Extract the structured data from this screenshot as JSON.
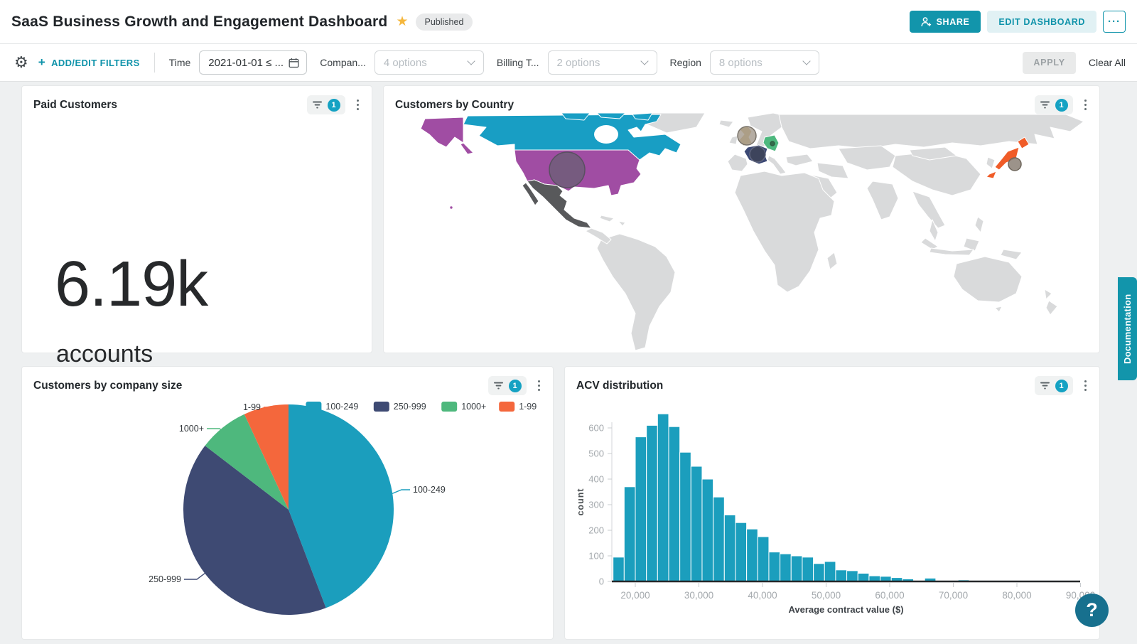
{
  "header": {
    "title": "SaaS Business Growth and Engagement Dashboard",
    "status": "Published",
    "share_label": "SHARE",
    "edit_label": "EDIT DASHBOARD",
    "more_label": "···"
  },
  "filter_bar": {
    "add_edit_label": "ADD/EDIT FILTERS",
    "plus": "+",
    "filters": [
      {
        "label": "Time",
        "value": "2021-01-01 ≤ ..."
      },
      {
        "label": "Compan...",
        "value": "4 options"
      },
      {
        "label": "Billing T...",
        "value": "2 options"
      },
      {
        "label": "Region",
        "value": "8 options"
      }
    ],
    "apply_label": "APPLY",
    "clear_all_label": "Clear All"
  },
  "tiles": {
    "paid": {
      "title": "Paid Customers",
      "filter_count": "1",
      "value": "6.19k",
      "unit": "accounts"
    },
    "country": {
      "filter_count": "1"
    },
    "size": {
      "filter_count": "1"
    },
    "acv": {
      "filter_count": "1"
    }
  },
  "side": {
    "documentation_label": "Documentation",
    "help_label": "?"
  },
  "chart_data": [
    {
      "type": "pie",
      "title": "Customers by company size",
      "labels": [
        "100-249",
        "250-999",
        "1000+",
        "1-99"
      ],
      "values_pct": [
        44.2,
        41.2,
        7.7,
        6.9
      ],
      "colors": [
        "#1B9EBD",
        "#3E4A73",
        "#4EB87D",
        "#F4673C"
      ],
      "legend_position": "top-right",
      "start_angle": "top, clockwise"
    },
    {
      "type": "bar",
      "subtype": "histogram",
      "title": "ACV distribution",
      "xlabel": "Average contract value ($)",
      "ylabel": "count",
      "color": "#1B9EBD",
      "bin_start": 16500,
      "bin_width": 1750,
      "values": [
        95,
        370,
        565,
        610,
        655,
        605,
        505,
        450,
        400,
        330,
        260,
        230,
        205,
        175,
        115,
        108,
        100,
        95,
        70,
        78,
        45,
        42,
        32,
        22,
        20,
        15,
        10,
        0,
        13,
        0,
        0,
        6,
        0
      ],
      "x_ticks": [
        20000,
        30000,
        40000,
        50000,
        60000,
        70000,
        80000,
        90000
      ],
      "y_ticks": [
        0,
        100,
        200,
        300,
        400,
        500,
        600
      ],
      "xlim": [
        16300,
        90000
      ],
      "ylim": [
        0,
        680
      ],
      "grid": false
    },
    {
      "type": "map",
      "title": "Customers by Country",
      "default_color": "#D9DADB",
      "border_color": "#FFFFFF",
      "countries": [
        {
          "name": "Canada",
          "color": "#189EC4"
        },
        {
          "name": "USA",
          "color": "#A04DA3"
        },
        {
          "name": "Mexico",
          "color": "#58595B"
        },
        {
          "name": "United Kingdom",
          "color": "#C09A3E"
        },
        {
          "name": "France",
          "color": "#3B4874"
        },
        {
          "name": "Germany",
          "color": "#4DB87E"
        },
        {
          "name": "Japan",
          "color": "#F05C28"
        }
      ],
      "bubbles": [
        {
          "country": "USA",
          "radius": 25
        },
        {
          "country": "United Kingdom",
          "radius": 13
        },
        {
          "country": "France",
          "radius": 11
        },
        {
          "country": "Japan",
          "radius": 9
        },
        {
          "country": "Germany",
          "radius": 3
        }
      ]
    }
  ]
}
